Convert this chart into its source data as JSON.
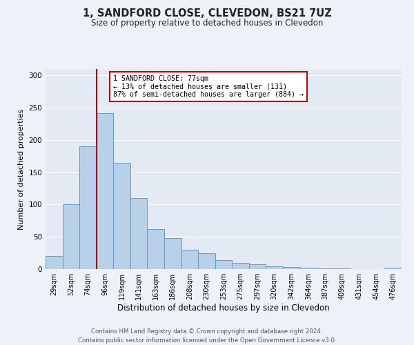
{
  "title": "1, SANDFORD CLOSE, CLEVEDON, BS21 7UZ",
  "subtitle": "Size of property relative to detached houses in Clevedon",
  "xlabel": "Distribution of detached houses by size in Clevedon",
  "ylabel": "Number of detached properties",
  "bar_labels": [
    "29sqm",
    "52sqm",
    "74sqm",
    "96sqm",
    "119sqm",
    "141sqm",
    "163sqm",
    "186sqm",
    "208sqm",
    "230sqm",
    "253sqm",
    "275sqm",
    "297sqm",
    "320sqm",
    "342sqm",
    "364sqm",
    "387sqm",
    "409sqm",
    "431sqm",
    "454sqm",
    "476sqm"
  ],
  "bar_values": [
    20,
    100,
    190,
    242,
    165,
    110,
    62,
    48,
    30,
    25,
    14,
    10,
    8,
    4,
    3,
    2,
    1,
    1,
    0,
    0,
    2
  ],
  "bar_color": "#b8d0e8",
  "bar_edge_color": "#6699cc",
  "property_line_color": "#cc0000",
  "annotation_title": "1 SANDFORD CLOSE: 77sqm",
  "annotation_line1": "← 13% of detached houses are smaller (131)",
  "annotation_line2": "87% of semi-detached houses are larger (884) →",
  "annotation_box_color": "#cc0000",
  "ylim": [
    0,
    310
  ],
  "yticks": [
    0,
    50,
    100,
    150,
    200,
    250,
    300
  ],
  "footer_line1": "Contains HM Land Registry data © Crown copyright and database right 2024.",
  "footer_line2": "Contains public sector information licensed under the Open Government Licence v3.0.",
  "background_color": "#eef2f8",
  "plot_background": "#e4eaf4"
}
